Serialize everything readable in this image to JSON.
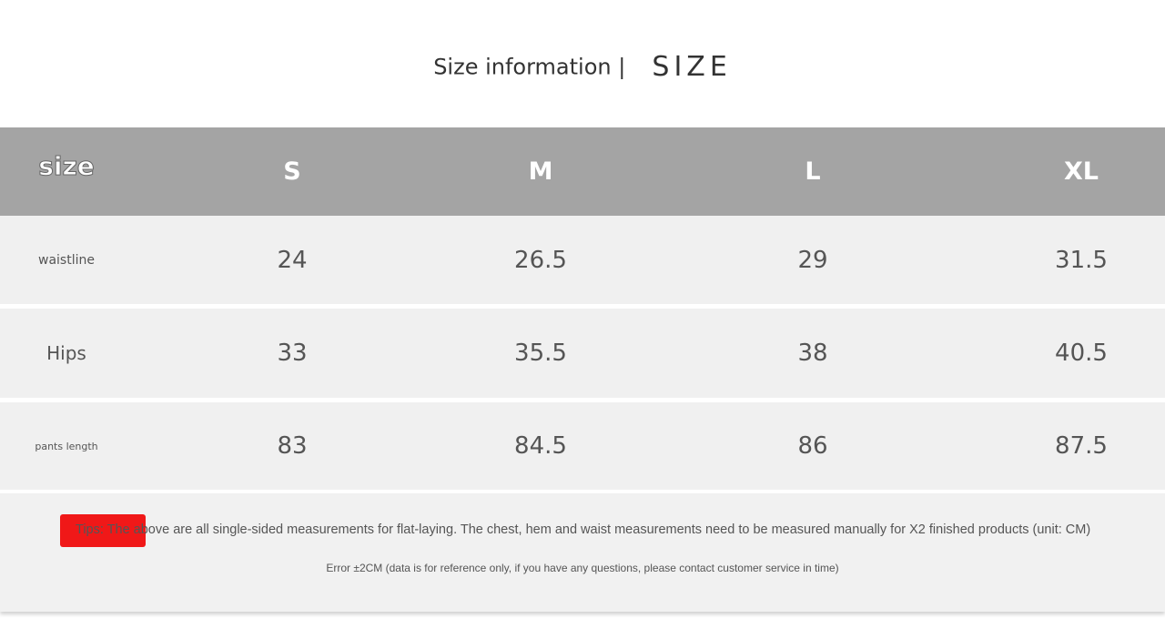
{
  "title": {
    "main": "Size information |",
    "emphasis": "SIZE"
  },
  "table": {
    "header": [
      "size",
      "S",
      "M",
      "L",
      "XL"
    ],
    "rows": [
      {
        "label": "waistline",
        "values": [
          "24",
          "26.5",
          "29",
          "31.5"
        ]
      },
      {
        "label": "Hips",
        "values": [
          "33",
          "35.5",
          "38",
          "40.5"
        ]
      },
      {
        "label": "pants length",
        "values": [
          "83",
          "84.5",
          "86",
          "87.5"
        ]
      }
    ]
  },
  "notes": {
    "tips": "Tips: The above are all single-sided measurements for flat-laying. The chest, hem and waist measurements need to be measured manually for X2 finished products (unit: CM)",
    "error": "Error ±2CM (data is for reference only, if you have any questions, please contact customer service in time)"
  },
  "colors": {
    "header_bg": "#a4a4a4",
    "row_bg": "#f0f0f0",
    "tip_highlight": "#f01818"
  }
}
